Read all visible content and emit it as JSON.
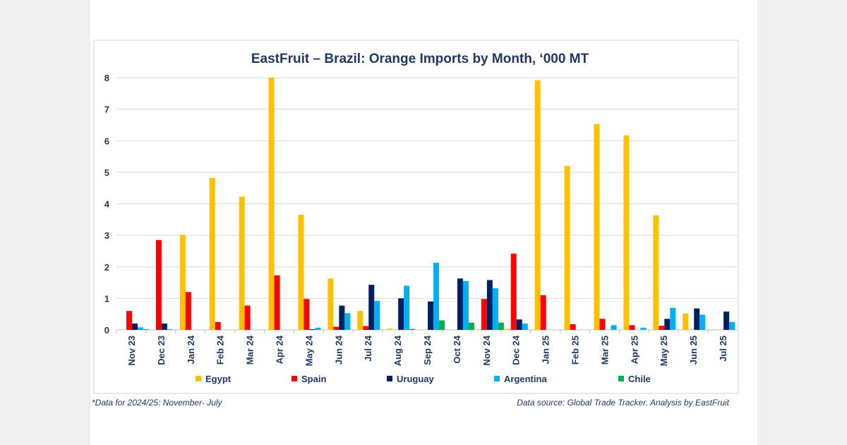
{
  "chart_data": {
    "type": "bar",
    "title": "EastFruit – Brazil: Orange Imports by Month, ‘000 MT",
    "xlabel": "",
    "ylabel": "",
    "ylim": [
      0,
      8
    ],
    "yticks": [
      "0",
      "1",
      "2",
      "3",
      "4",
      "5",
      "6",
      "7",
      "8"
    ],
    "grid": true,
    "legend_placement": "bottom",
    "categories": [
      "Nov 23",
      "Dec 23",
      "Jan 24",
      "Feb 24",
      "Mar 24",
      "Apr 24",
      "May 24",
      "Jun 24",
      "Jul 24",
      "Aug 24",
      "Sep 24",
      "Oct 24",
      "Nov 24",
      "Dec 24",
      "Jan 25",
      "Feb 25",
      "Mar 25",
      "Apr 25",
      "May 25",
      "Jun 25",
      "Jul 25"
    ],
    "series": [
      {
        "name": "Egypt",
        "color": "#ffc000",
        "values": [
          0,
          0,
          3.02,
          4.82,
          4.23,
          8.0,
          3.65,
          1.63,
          0.6,
          0.04,
          0,
          0,
          0,
          0.03,
          7.92,
          5.2,
          6.53,
          6.17,
          3.63,
          0.52,
          0
        ]
      },
      {
        "name": "Spain",
        "color": "#ff0000",
        "values": [
          0.6,
          2.85,
          1.2,
          0.25,
          0.77,
          1.73,
          0.98,
          0.1,
          0.12,
          0,
          0,
          0,
          0.98,
          2.42,
          1.1,
          0.18,
          0.35,
          0.15,
          0.13,
          0,
          0
        ]
      },
      {
        "name": "Uruguay",
        "color": "#002060",
        "values": [
          0.2,
          0.2,
          0,
          0,
          0,
          0,
          0.02,
          0.77,
          1.43,
          1.0,
          0.9,
          1.63,
          1.58,
          0.33,
          0,
          0,
          0,
          0,
          0.35,
          0.68,
          0.58
        ]
      },
      {
        "name": "Argentina",
        "color": "#00b0f0",
        "values": [
          0.08,
          0.02,
          0,
          0,
          0,
          0,
          0.07,
          0.53,
          0.92,
          1.4,
          2.13,
          1.55,
          1.32,
          0.2,
          0,
          0,
          0.15,
          0.07,
          0.7,
          0.48,
          0.25
        ]
      },
      {
        "name": "Chile",
        "color": "#00b050",
        "values": [
          0.02,
          0,
          0,
          0,
          0,
          0,
          0,
          0,
          0,
          0.03,
          0.3,
          0.23,
          0.23,
          0,
          0,
          0,
          0,
          0,
          0,
          0,
          0
        ]
      }
    ]
  },
  "footnote_left": "*Data for 2024/25: November- July",
  "footnote_right": "Data source: Global Trade Tracker. Analysis by EastFruit"
}
